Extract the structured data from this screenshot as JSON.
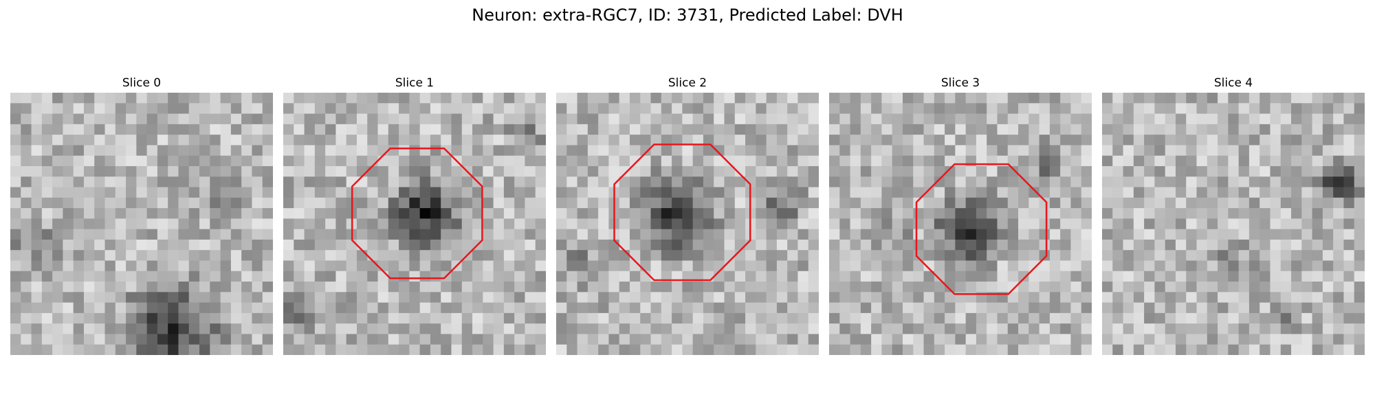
{
  "figure": {
    "title": "Neuron: extra-RGC7, ID: 3731, Predicted Label: DVH",
    "outline_color": "#e8161b",
    "panels": [
      {
        "label": "Slice 0",
        "has_outline": false
      },
      {
        "label": "Slice 1",
        "has_outline": true
      },
      {
        "label": "Slice 2",
        "has_outline": true
      },
      {
        "label": "Slice 3",
        "has_outline": true
      },
      {
        "label": "Slice 4",
        "has_outline": false
      }
    ]
  }
}
